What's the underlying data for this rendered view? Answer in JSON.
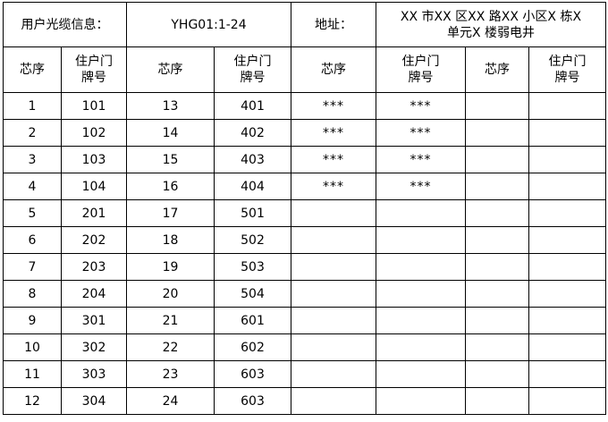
{
  "header": {
    "info_label": "用户光缆信息：",
    "cable_id": "YHG01:1-24",
    "address_label": "地址：",
    "address_line1": "XX 市XX 区XX 路XX 小区X 栋X",
    "address_line2": "单元X 楼弱电井"
  },
  "columns": {
    "core": "芯序",
    "door_line1": "住户门",
    "door_line2": "牌号"
  },
  "rows": [
    [
      "1",
      "101",
      "13",
      "401",
      "***",
      "***",
      "",
      ""
    ],
    [
      "2",
      "102",
      "14",
      "402",
      "***",
      "***",
      "",
      ""
    ],
    [
      "3",
      "103",
      "15",
      "403",
      "***",
      "***",
      "",
      ""
    ],
    [
      "4",
      "104",
      "16",
      "404",
      "***",
      "***",
      "",
      ""
    ],
    [
      "5",
      "201",
      "17",
      "501",
      "",
      "",
      "",
      ""
    ],
    [
      "6",
      "202",
      "18",
      "502",
      "",
      "",
      "",
      ""
    ],
    [
      "7",
      "203",
      "19",
      "503",
      "",
      "",
      "",
      ""
    ],
    [
      "8",
      "204",
      "20",
      "504",
      "",
      "",
      "",
      ""
    ],
    [
      "9",
      "301",
      "21",
      "601",
      "",
      "",
      "",
      ""
    ],
    [
      "10",
      "302",
      "22",
      "602",
      "",
      "",
      "",
      ""
    ],
    [
      "11",
      "303",
      "23",
      "603",
      "",
      "",
      "",
      ""
    ],
    [
      "12",
      "304",
      "24",
      "603",
      "",
      "",
      "",
      ""
    ]
  ]
}
